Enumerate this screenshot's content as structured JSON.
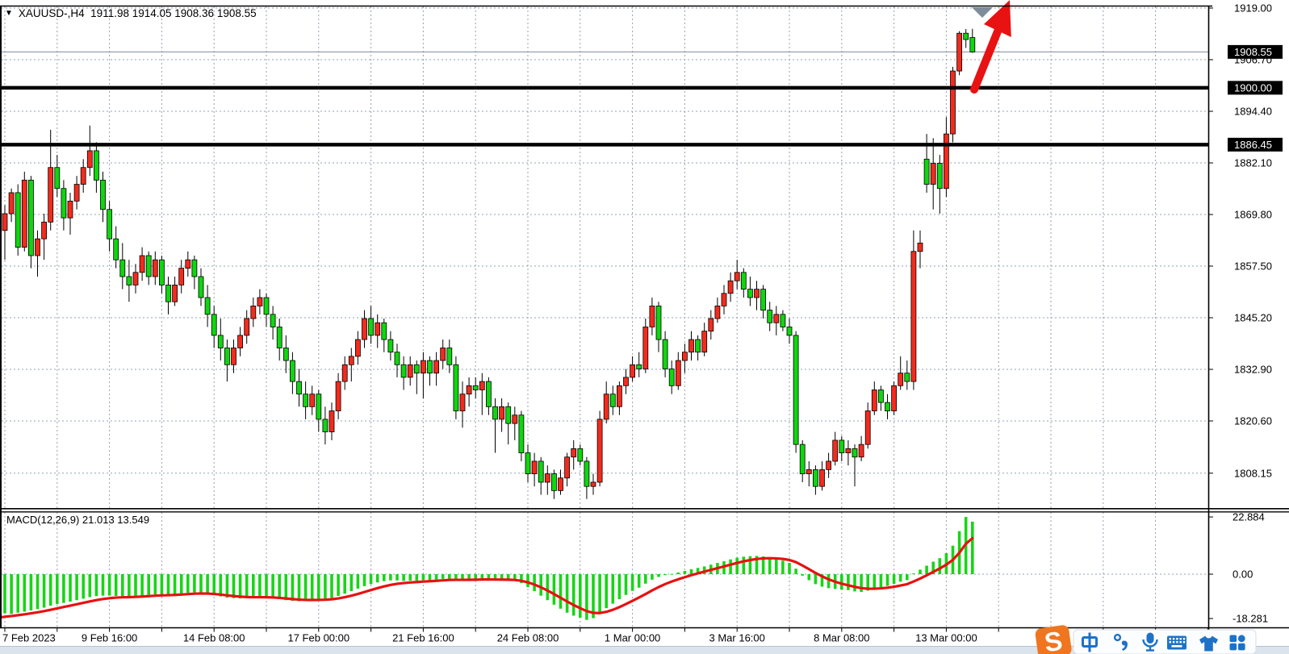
{
  "title_bar": {
    "dropdown_icon": "▼",
    "text": "XAUUSD-,H4  1911.98 1914.05 1908.36 1908.55"
  },
  "indicator_label": "MACD(12,26,9) 21.013 13.549",
  "chart_data": {
    "type": "candlestick",
    "symbol": "XAUUSD-",
    "timeframe": "H4",
    "title": "XAUUSD-,H4",
    "current_bar": {
      "open": 1911.98,
      "high": 1914.05,
      "low": 1908.36,
      "close": 1908.55
    },
    "up_color": "#f32b1d",
    "down_color": "#0fd60f",
    "wick_color": "#000000",
    "grid_color": "#93a1b3",
    "ylim": [
      1799.8,
      1919.4
    ],
    "price_ticks": [
      1919.0,
      1906.7,
      1894.4,
      1882.1,
      1869.8,
      1857.5,
      1845.2,
      1832.9,
      1820.6,
      1808.15
    ],
    "hlines": [
      {
        "price": 1900.0,
        "label": "1900.00",
        "color": "#000000"
      },
      {
        "price": 1886.45,
        "label": "1886.45",
        "color": "#000000"
      }
    ],
    "current_price": {
      "price": 1908.55,
      "label": "1908.55",
      "line_color": "#7e8c98"
    },
    "time_labels": [
      {
        "bar": 0,
        "label": "7 Feb 2023"
      },
      {
        "bar": 16,
        "label": "9 Feb 16:00"
      },
      {
        "bar": 32,
        "label": "14 Feb 08:00"
      },
      {
        "bar": 48,
        "label": "17 Feb 00:00"
      },
      {
        "bar": 64,
        "label": "21 Feb 16:00"
      },
      {
        "bar": 80,
        "label": "24 Feb 08:00"
      },
      {
        "bar": 96,
        "label": "1 Mar 00:00"
      },
      {
        "bar": 112,
        "label": "3 Mar 16:00"
      },
      {
        "bar": 128,
        "label": "8 Mar 08:00"
      },
      {
        "bar": 144,
        "label": "13 Mar 00:00"
      }
    ],
    "candles": [
      [
        1866,
        1872,
        1859,
        1870
      ],
      [
        1870,
        1876,
        1868,
        1875
      ],
      [
        1875,
        1877,
        1860,
        1862
      ],
      [
        1862,
        1880,
        1861,
        1878
      ],
      [
        1878,
        1879,
        1857,
        1860
      ],
      [
        1860,
        1866,
        1855,
        1864
      ],
      [
        1864,
        1870,
        1859,
        1868
      ],
      [
        1868,
        1890,
        1866,
        1881
      ],
      [
        1881,
        1884,
        1874,
        1876
      ],
      [
        1876,
        1878,
        1866,
        1869
      ],
      [
        1869,
        1875,
        1865,
        1873
      ],
      [
        1873,
        1879,
        1871,
        1877
      ],
      [
        1877,
        1883,
        1875,
        1881
      ],
      [
        1881,
        1891,
        1879,
        1885
      ],
      [
        1885,
        1887,
        1875,
        1878
      ],
      [
        1878,
        1880,
        1868,
        1871
      ],
      [
        1871,
        1873,
        1861,
        1864
      ],
      [
        1864,
        1867,
        1857,
        1859
      ],
      [
        1859,
        1863,
        1852,
        1855
      ],
      [
        1855,
        1859,
        1849,
        1853
      ],
      [
        1853,
        1858,
        1851,
        1856
      ],
      [
        1856,
        1862,
        1854,
        1860
      ],
      [
        1860,
        1861,
        1853,
        1855
      ],
      [
        1855,
        1861,
        1853,
        1859
      ],
      [
        1859,
        1860,
        1851,
        1853
      ],
      [
        1853,
        1855,
        1846,
        1849
      ],
      [
        1849,
        1855,
        1848,
        1853
      ],
      [
        1853,
        1859,
        1851,
        1857
      ],
      [
        1857,
        1861,
        1855,
        1859
      ],
      [
        1859,
        1860,
        1852,
        1855
      ],
      [
        1855,
        1857,
        1848,
        1850
      ],
      [
        1850,
        1853,
        1843,
        1846
      ],
      [
        1846,
        1848,
        1838,
        1841
      ],
      [
        1841,
        1845,
        1835,
        1838
      ],
      [
        1838,
        1840,
        1830,
        1834
      ],
      [
        1834,
        1840,
        1832,
        1838
      ],
      [
        1838,
        1843,
        1836,
        1841
      ],
      [
        1841,
        1847,
        1839,
        1845
      ],
      [
        1845,
        1850,
        1843,
        1848
      ],
      [
        1848,
        1852,
        1846,
        1850
      ],
      [
        1850,
        1851,
        1843,
        1846
      ],
      [
        1846,
        1848,
        1840,
        1843
      ],
      [
        1843,
        1845,
        1835,
        1838
      ],
      [
        1838,
        1841,
        1832,
        1835
      ],
      [
        1835,
        1837,
        1827,
        1830
      ],
      [
        1830,
        1833,
        1824,
        1827
      ],
      [
        1827,
        1830,
        1821,
        1824
      ],
      [
        1824,
        1829,
        1822,
        1827
      ],
      [
        1827,
        1828,
        1818,
        1821
      ],
      [
        1821,
        1824,
        1815,
        1818
      ],
      [
        1818,
        1825,
        1816,
        1823
      ],
      [
        1823,
        1832,
        1821,
        1830
      ],
      [
        1830,
        1836,
        1828,
        1834
      ],
      [
        1834,
        1838,
        1830,
        1836
      ],
      [
        1836,
        1842,
        1834,
        1840
      ],
      [
        1840,
        1847,
        1838,
        1845
      ],
      [
        1845,
        1848,
        1839,
        1841
      ],
      [
        1841,
        1846,
        1838,
        1844
      ],
      [
        1844,
        1845,
        1837,
        1840
      ],
      [
        1840,
        1842,
        1835,
        1837
      ],
      [
        1837,
        1839,
        1831,
        1834
      ],
      [
        1834,
        1836,
        1828,
        1831
      ],
      [
        1831,
        1836,
        1829,
        1834
      ],
      [
        1834,
        1835,
        1827,
        1832
      ],
      [
        1832,
        1837,
        1826,
        1835
      ],
      [
        1835,
        1836,
        1829,
        1832
      ],
      [
        1832,
        1837,
        1829,
        1835
      ],
      [
        1835,
        1840,
        1833,
        1838
      ],
      [
        1838,
        1840,
        1832,
        1834
      ],
      [
        1834,
        1836,
        1821,
        1823
      ],
      [
        1823,
        1830,
        1819,
        1827
      ],
      [
        1827,
        1831,
        1824,
        1829
      ],
      [
        1829,
        1831,
        1826,
        1828
      ],
      [
        1828,
        1832,
        1822,
        1830
      ],
      [
        1830,
        1831,
        1822,
        1824
      ],
      [
        1824,
        1826,
        1813,
        1821
      ],
      [
        1821,
        1826,
        1818,
        1824
      ],
      [
        1824,
        1825,
        1815,
        1820
      ],
      [
        1820,
        1824,
        1816,
        1822
      ],
      [
        1822,
        1823,
        1811,
        1813
      ],
      [
        1813,
        1815,
        1806,
        1808
      ],
      [
        1808,
        1813,
        1805,
        1811
      ],
      [
        1811,
        1812,
        1803,
        1806
      ],
      [
        1806,
        1810,
        1803,
        1808
      ],
      [
        1808,
        1809,
        1802,
        1804
      ],
      [
        1804,
        1809,
        1803,
        1807
      ],
      [
        1807,
        1813,
        1805,
        1812
      ],
      [
        1812,
        1816,
        1809,
        1814
      ],
      [
        1814,
        1815,
        1810,
        1811
      ],
      [
        1811,
        1812,
        1802,
        1805
      ],
      [
        1805,
        1808,
        1803,
        1806
      ],
      [
        1806,
        1823,
        1805,
        1821
      ],
      [
        1821,
        1830,
        1820,
        1827
      ],
      [
        1827,
        1829,
        1822,
        1824
      ],
      [
        1824,
        1830,
        1822,
        1829
      ],
      [
        1829,
        1833,
        1827,
        1831
      ],
      [
        1831,
        1836,
        1830,
        1834
      ],
      [
        1834,
        1837,
        1831,
        1833
      ],
      [
        1833,
        1845,
        1832,
        1843
      ],
      [
        1843,
        1850,
        1841,
        1848
      ],
      [
        1848,
        1849,
        1837,
        1840
      ],
      [
        1840,
        1842,
        1831,
        1833
      ],
      [
        1833,
        1835,
        1827,
        1829
      ],
      [
        1829,
        1837,
        1828,
        1835
      ],
      [
        1835,
        1839,
        1832,
        1837
      ],
      [
        1837,
        1842,
        1835,
        1840
      ],
      [
        1840,
        1841,
        1835,
        1837
      ],
      [
        1837,
        1844,
        1836,
        1842
      ],
      [
        1842,
        1847,
        1840,
        1845
      ],
      [
        1845,
        1850,
        1844,
        1848
      ],
      [
        1848,
        1853,
        1846,
        1851
      ],
      [
        1851,
        1856,
        1849,
        1854
      ],
      [
        1854,
        1859,
        1852,
        1856
      ],
      [
        1856,
        1857,
        1850,
        1852
      ],
      [
        1852,
        1855,
        1848,
        1850
      ],
      [
        1850,
        1854,
        1847,
        1852
      ],
      [
        1852,
        1853,
        1845,
        1847
      ],
      [
        1847,
        1849,
        1842,
        1844
      ],
      [
        1844,
        1848,
        1841,
        1846
      ],
      [
        1846,
        1847,
        1842,
        1843
      ],
      [
        1843,
        1845,
        1839,
        1841
      ],
      [
        1841,
        1842,
        1813,
        1815
      ],
      [
        1815,
        1816,
        1806,
        1808
      ],
      [
        1808,
        1811,
        1805,
        1809
      ],
      [
        1809,
        1810,
        1803,
        1805
      ],
      [
        1805,
        1811,
        1804,
        1809
      ],
      [
        1809,
        1813,
        1807,
        1811
      ],
      [
        1811,
        1818,
        1810,
        1816
      ],
      [
        1816,
        1817,
        1811,
        1813
      ],
      [
        1813,
        1816,
        1810,
        1814
      ],
      [
        1814,
        1815,
        1805,
        1812
      ],
      [
        1812,
        1817,
        1811,
        1815
      ],
      [
        1815,
        1825,
        1814,
        1823
      ],
      [
        1823,
        1830,
        1822,
        1828
      ],
      [
        1828,
        1829,
        1823,
        1825
      ],
      [
        1825,
        1827,
        1821,
        1823
      ],
      [
        1823,
        1830,
        1822,
        1829
      ],
      [
        1829,
        1836,
        1828,
        1832
      ],
      [
        1832,
        1835,
        1828,
        1830
      ],
      [
        1830,
        1866,
        1828,
        1861
      ],
      [
        1861,
        1866,
        1857,
        1863
      ],
      [
        1883,
        1889,
        1875,
        1877
      ],
      [
        1877,
        1888,
        1871,
        1882
      ],
      [
        1882,
        1884,
        1870,
        1876
      ],
      [
        1876,
        1893,
        1874,
        1889
      ],
      [
        1889,
        1905,
        1887,
        1904
      ],
      [
        1904,
        1913.5,
        1903,
        1913
      ],
      [
        1913,
        1914,
        1909.5,
        1911.5
      ],
      [
        1911.98,
        1914.05,
        1908.36,
        1908.55
      ]
    ],
    "macd": {
      "params": "12,26,9",
      "main_current": 21.013,
      "signal_current": 13.549,
      "axis_labels": {
        "max": "22.884",
        "zero": "0.00",
        "min": "-18.281"
      },
      "hist_color": "#17d517",
      "signal_color": "#e81111",
      "histogram": [
        -15.6,
        -15.9,
        -15.4,
        -15.0,
        -14.5,
        -14.0,
        -13.4,
        -12.6,
        -12.0,
        -11.5,
        -11.0,
        -10.4,
        -9.8,
        -9.2,
        -8.8,
        -8.6,
        -8.6,
        -8.7,
        -8.9,
        -9.0,
        -8.8,
        -8.5,
        -8.3,
        -8.1,
        -8.1,
        -8.2,
        -8.0,
        -7.7,
        -7.4,
        -7.3,
        -7.5,
        -7.9,
        -8.4,
        -8.9,
        -9.4,
        -9.6,
        -9.7,
        -9.6,
        -9.4,
        -9.2,
        -9.3,
        -9.6,
        -10.0,
        -10.4,
        -10.7,
        -10.8,
        -10.7,
        -10.4,
        -10.2,
        -10.0,
        -9.5,
        -8.7,
        -7.8,
        -6.8,
        -5.8,
        -4.8,
        -4.0,
        -3.3,
        -2.8,
        -2.5,
        -2.5,
        -2.7,
        -2.6,
        -2.6,
        -2.4,
        -2.4,
        -2.2,
        -1.9,
        -1.8,
        -2.2,
        -2.3,
        -2.2,
        -2.1,
        -1.9,
        -2.0,
        -2.3,
        -2.2,
        -2.4,
        -2.6,
        -3.6,
        -5.2,
        -6.8,
        -8.6,
        -10.4,
        -12.2,
        -13.8,
        -15.4,
        -16.6,
        -17.4,
        -18.281,
        -17.6,
        -15.8,
        -13.6,
        -11.8,
        -10.0,
        -8.3,
        -6.7,
        -5.4,
        -3.8,
        -2.2,
        -1.1,
        -0.4,
        0.1,
        0.7,
        1.3,
        2.0,
        2.5,
        3.1,
        3.8,
        4.5,
        5.2,
        5.9,
        6.6,
        7.0,
        7.2,
        7.3,
        7.1,
        6.6,
        6.1,
        5.4,
        4.5,
        2.2,
        -0.6,
        -2.4,
        -4.0,
        -5.0,
        -5.6,
        -5.9,
        -6.2,
        -6.4,
        -6.9,
        -7.1,
        -6.6,
        -5.8,
        -5.2,
        -4.7,
        -3.9,
        -3.0,
        -2.4,
        0.3,
        1.8,
        3.4,
        5.0,
        6.4,
        8.4,
        11.4,
        17.2,
        22.884,
        21.013
      ]
    },
    "annotations": {
      "arrow": {
        "type": "up-arrow",
        "color": "#e81212"
      },
      "shift_marker": {
        "type": "down-triangle",
        "color": "#7f8c99"
      }
    }
  },
  "ime_toolbar": {
    "logo_text": "S",
    "logo_color": "#f0751f",
    "icon_color": "#1d72c8",
    "bar_color": "#fcfdfe",
    "icons": [
      "chinese-mode",
      "punctuation",
      "microphone",
      "keyboard",
      "skin",
      "toolbox"
    ]
  },
  "colors": {
    "bottom_strip": "#dbe3ed",
    "border": "#000000"
  }
}
